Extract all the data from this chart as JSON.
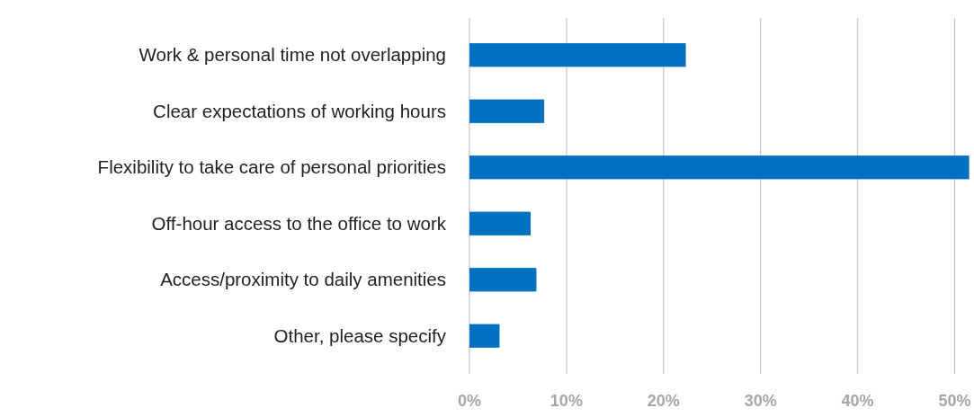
{
  "chart_data": {
    "type": "bar",
    "orientation": "horizontal",
    "categories": [
      "Work & personal time not overlapping",
      "Clear expectations of working hours",
      "Flexibility to take care of personal priorities",
      "Off-hour access to the office to work",
      "Access/proximity to daily amenities",
      "Other, please specify"
    ],
    "values": [
      22.3,
      7.7,
      51.5,
      6.3,
      6.9,
      3.1
    ],
    "color": "#0070c0",
    "xlim": [
      0,
      52
    ],
    "xticks": [
      {
        "value": 0,
        "label": "0%"
      },
      {
        "value": 10,
        "label": "10%"
      },
      {
        "value": 20,
        "label": "20%"
      },
      {
        "value": 30,
        "label": "30%"
      },
      {
        "value": 40,
        "label": "40%"
      },
      {
        "value": 50,
        "label": "50%"
      }
    ],
    "grid": "x"
  }
}
